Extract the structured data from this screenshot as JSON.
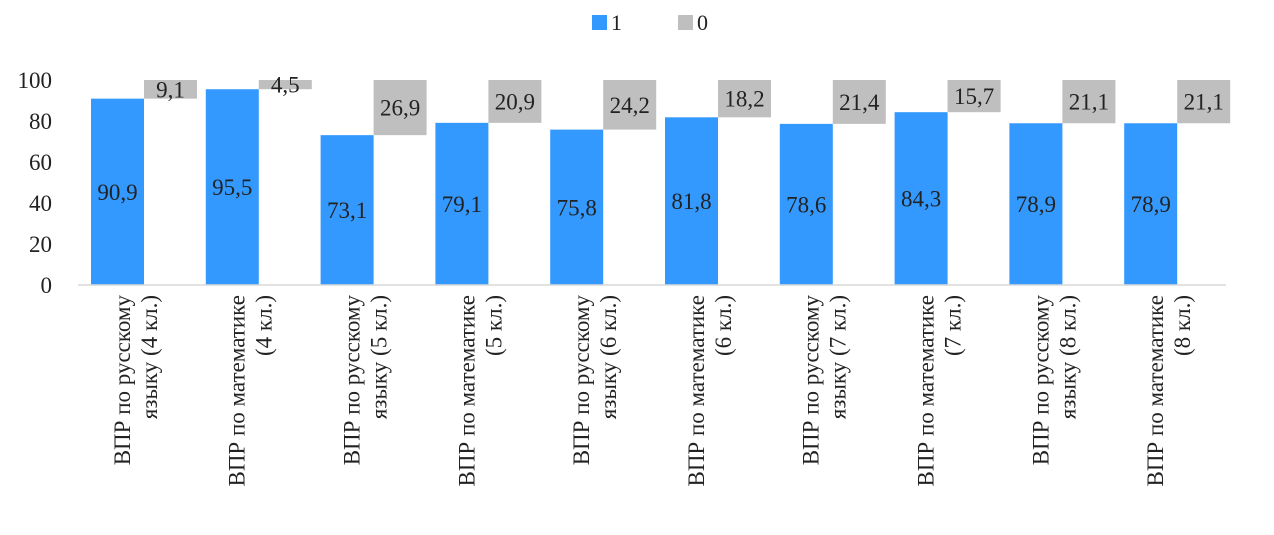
{
  "chart_data": {
    "type": "bar",
    "categories": [
      [
        "ВПР по русскому",
        "языку (4 кл.)"
      ],
      [
        "ВПР по математике",
        "(4 кл.)"
      ],
      [
        "ВПР по русскому",
        "языку (5 кл.)"
      ],
      [
        "ВПР по математике",
        "(5 кл.)"
      ],
      [
        "ВПР по русскому",
        "языку (6 кл.)"
      ],
      [
        "ВПР по математике",
        "(6 кл.)"
      ],
      [
        "ВПР по русскому",
        "языку (7 кл.)"
      ],
      [
        "ВПР по математике",
        "(7 кл.)"
      ],
      [
        "ВПР по русскому",
        "языку (8 кл.)"
      ],
      [
        "ВПР по математике",
        "(8 кл.)"
      ]
    ],
    "series": [
      {
        "name": "1",
        "color": "#3399ff",
        "values": [
          90.9,
          95.5,
          73.1,
          79.1,
          75.8,
          81.8,
          78.6,
          84.3,
          78.9,
          78.9
        ],
        "labels": [
          "90,9",
          "95,5",
          "73,1",
          "79,1",
          "75,8",
          "81,8",
          "78,6",
          "84,3",
          "78,9",
          "78,9"
        ]
      },
      {
        "name": "0",
        "color": "#bfbfbf",
        "values": [
          9.1,
          4.5,
          26.9,
          20.9,
          24.2,
          18.2,
          21.4,
          15.7,
          21.1,
          21.1
        ],
        "labels": [
          "9,1",
          "4,5",
          "26,9",
          "20,9",
          "24,2",
          "18,2",
          "21,4",
          "15,7",
          "21,1",
          "21,1"
        ]
      }
    ],
    "ylim": [
      0,
      100
    ],
    "yticks": [
      0,
      20,
      40,
      60,
      80,
      100
    ],
    "legend": "top",
    "grid": false
  }
}
